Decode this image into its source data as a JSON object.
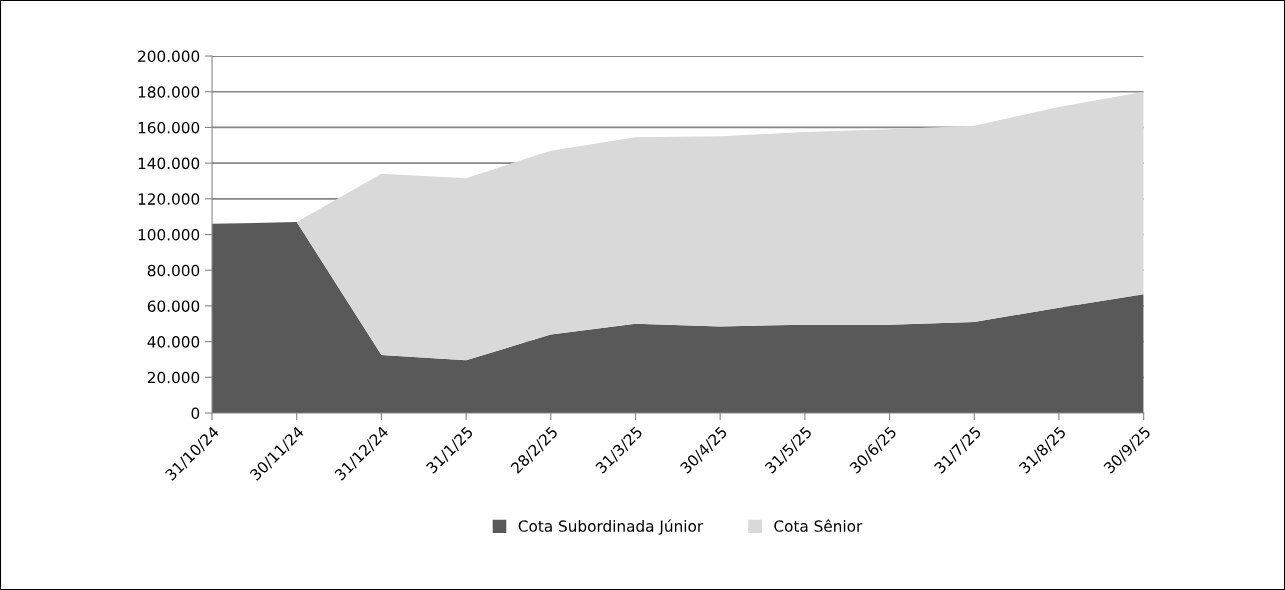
{
  "chart_data": {
    "type": "area",
    "stacked": true,
    "categories": [
      "31/10/24",
      "30/11/24",
      "31/12/24",
      "31/1/25",
      "28/2/25",
      "31/3/25",
      "30/4/25",
      "31/5/25",
      "30/6/25",
      "31/7/25",
      "31/8/25",
      "30/9/25"
    ],
    "series": [
      {
        "name": "Cota Subordinada Júnior",
        "color": "#595959",
        "values": [
          106000,
          107000,
          32500,
          29500,
          44000,
          50000,
          48500,
          49500,
          49500,
          51000,
          59000,
          66500
        ]
      },
      {
        "name": "Cota Sênior",
        "color": "#d9d9d9",
        "values": [
          0,
          0,
          101500,
          102000,
          103000,
          104500,
          106500,
          108000,
          109500,
          110000,
          112500,
          113500
        ]
      }
    ],
    "ylim": [
      0,
      200000
    ],
    "yticks": [
      {
        "value": 0,
        "label": "0"
      },
      {
        "value": 20000,
        "label": "20.000"
      },
      {
        "value": 40000,
        "label": "40.000"
      },
      {
        "value": 60000,
        "label": "60.000"
      },
      {
        "value": 80000,
        "label": "80.000"
      },
      {
        "value": 100000,
        "label": "100.000"
      },
      {
        "value": 120000,
        "label": "120.000"
      },
      {
        "value": 140000,
        "label": "140.000"
      },
      {
        "value": 160000,
        "label": "160.000"
      },
      {
        "value": 180000,
        "label": "180.000"
      },
      {
        "value": 200000,
        "label": "200.000"
      }
    ],
    "grid": "y",
    "legend": "bottom"
  }
}
